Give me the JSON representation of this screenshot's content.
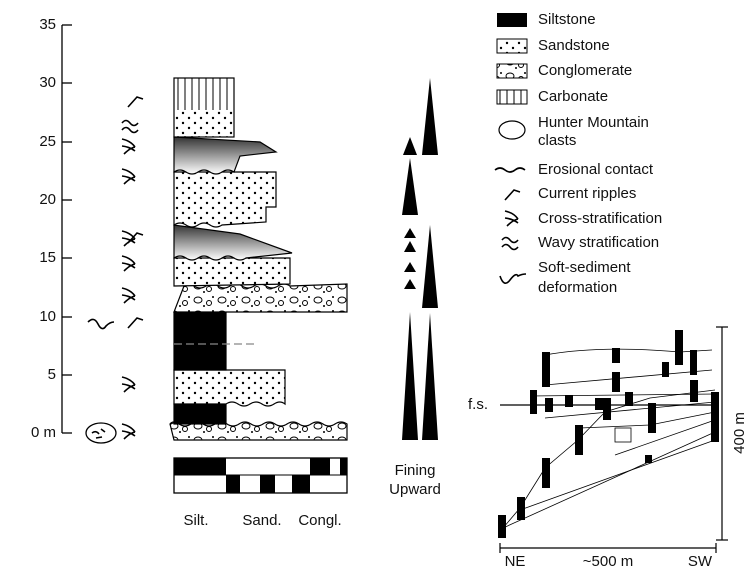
{
  "axis": {
    "ticks": [
      "0 m",
      "5",
      "10",
      "15",
      "20",
      "25",
      "30",
      "35"
    ]
  },
  "legend": {
    "items": [
      {
        "lines": [
          "Siltstone"
        ]
      },
      {
        "lines": [
          "Sandstone"
        ]
      },
      {
        "lines": [
          "Conglomerate"
        ]
      },
      {
        "lines": [
          "Carbonate"
        ]
      },
      {
        "lines": [
          "Hunter Mountain",
          "clasts"
        ]
      },
      {
        "lines": [
          "Erosional contact"
        ]
      },
      {
        "lines": [
          "Current ripples"
        ]
      },
      {
        "lines": [
          "Cross-stratification"
        ]
      },
      {
        "lines": [
          "Wavy stratification"
        ]
      },
      {
        "lines": [
          "Soft-sediment",
          "deformation"
        ]
      }
    ]
  },
  "fining": {
    "lines": [
      "Fining",
      "Upward"
    ]
  },
  "grain_size": {
    "labels": [
      "Silt.",
      "Sand.",
      "Congl."
    ]
  },
  "cross_section": {
    "surface": "f.s.",
    "height": "400 m",
    "left": "NE",
    "width": "~500 m",
    "right": "SW"
  }
}
